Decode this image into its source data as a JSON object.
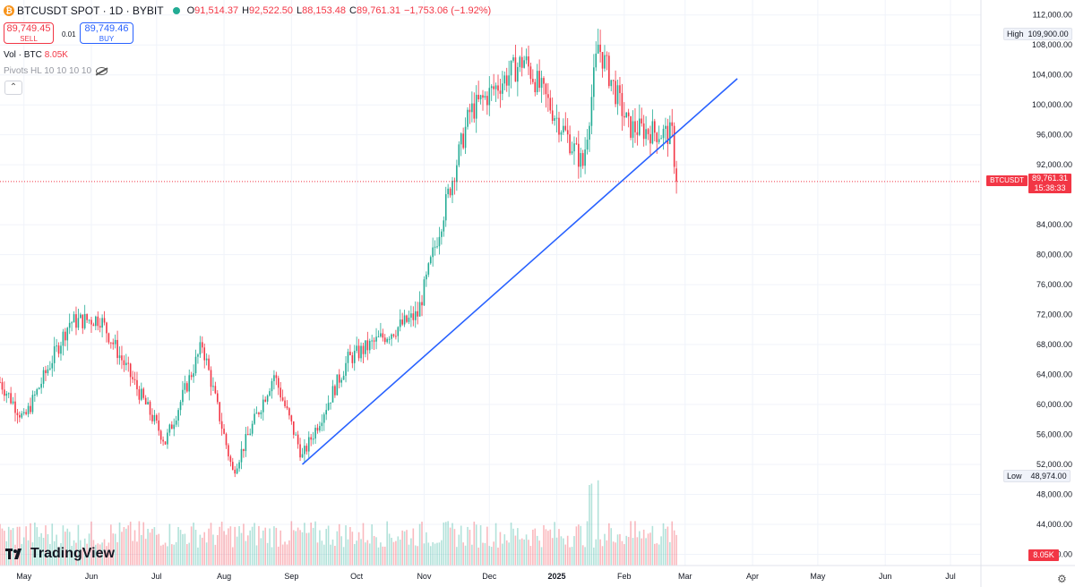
{
  "header": {
    "symbol_title": "BTCUSDT SPOT · 1D · BYBIT",
    "logo_glyph": "₿",
    "open_label": "O",
    "open": "91,514.37",
    "high_label": "H",
    "high": "92,522.50",
    "low_label": "L",
    "low": "88,153.48",
    "close_label": "C",
    "close": "89,761.31",
    "change": "−1,753.06 (−1.92%)"
  },
  "trade": {
    "sell_price": "89,749.45",
    "sell_label": "SELL",
    "spread": "0.01",
    "buy_price": "89,749.46",
    "buy_label": "BUY"
  },
  "indicators": {
    "vol_label": "Vol · BTC",
    "vol_value": "8.05K",
    "pivots_label": "Pivots HL 10 10 10 10"
  },
  "price_scale": {
    "ticks": [
      "112,000.00",
      "108,000.00",
      "104,000.00",
      "100,000.00",
      "96,000.00",
      "92,000.00",
      "84,000.00",
      "80,000.00",
      "76,000.00",
      "72,000.00",
      "68,000.00",
      "64,000.00",
      "60,000.00",
      "56,000.00",
      "52,000.00",
      "48,000.00",
      "44,000.00",
      "40,000.00"
    ],
    "high_label": "High",
    "high_value": "109,900.00",
    "low_label": "Low",
    "low_value": "48,974.00",
    "last_symbol": "BTCUSDT",
    "last_price": "89,761.31",
    "countdown": "15:38:33",
    "volume_value": "8.05K"
  },
  "time_scale": {
    "labels": [
      "May",
      "Jun",
      "Jul",
      "Aug",
      "Sep",
      "Oct",
      "Nov",
      "Dec",
      "2025",
      "Feb",
      "Mar",
      "Apr",
      "May",
      "Jun",
      "Jul"
    ]
  },
  "brand": {
    "name": "TradingView"
  },
  "colors": {
    "up": "#22ab94",
    "down": "#f23645",
    "trendline": "#2962ff",
    "grid": "#f0f3fa"
  },
  "chart_data": {
    "type": "candlestick",
    "title": "BTCUSDT SPOT · 1D · BYBIT",
    "y_range": [
      38500,
      114000
    ],
    "x_range": [
      "2024-04-20",
      "2025-07-15"
    ],
    "grid": true,
    "key_points": [
      {
        "date": "2024-05-01",
        "close": 58000
      },
      {
        "date": "2024-05-22",
        "close": 71000
      },
      {
        "date": "2024-06-05",
        "close": 71500
      },
      {
        "date": "2024-07-05",
        "close": 55000
      },
      {
        "date": "2024-07-22",
        "close": 68000
      },
      {
        "date": "2024-08-05",
        "close": 51000
      },
      {
        "date": "2024-08-24",
        "close": 64000
      },
      {
        "date": "2024-09-06",
        "close": 53000
      },
      {
        "date": "2024-09-27",
        "close": 66000
      },
      {
        "date": "2024-10-29",
        "close": 72000
      },
      {
        "date": "2024-11-12",
        "close": 88000
      },
      {
        "date": "2024-11-22",
        "close": 99000
      },
      {
        "date": "2024-12-17",
        "close": 106000
      },
      {
        "date": "2025-01-13",
        "close": 92000
      },
      {
        "date": "2025-01-20",
        "close": 108000
      },
      {
        "date": "2025-02-03",
        "close": 97000
      },
      {
        "date": "2025-02-23",
        "close": 96000
      },
      {
        "date": "2025-02-25",
        "close": 89761.31
      }
    ],
    "last": {
      "open": 91514.37,
      "high": 92522.5,
      "low": 88153.48,
      "close": 89761.31
    },
    "high_marker": 109900.0,
    "low_marker": 48974.0,
    "trendline": {
      "start": {
        "date": "2024-09-06",
        "price": 52000
      },
      "end": {
        "date": "2025-03-25",
        "price": 103500
      }
    }
  }
}
